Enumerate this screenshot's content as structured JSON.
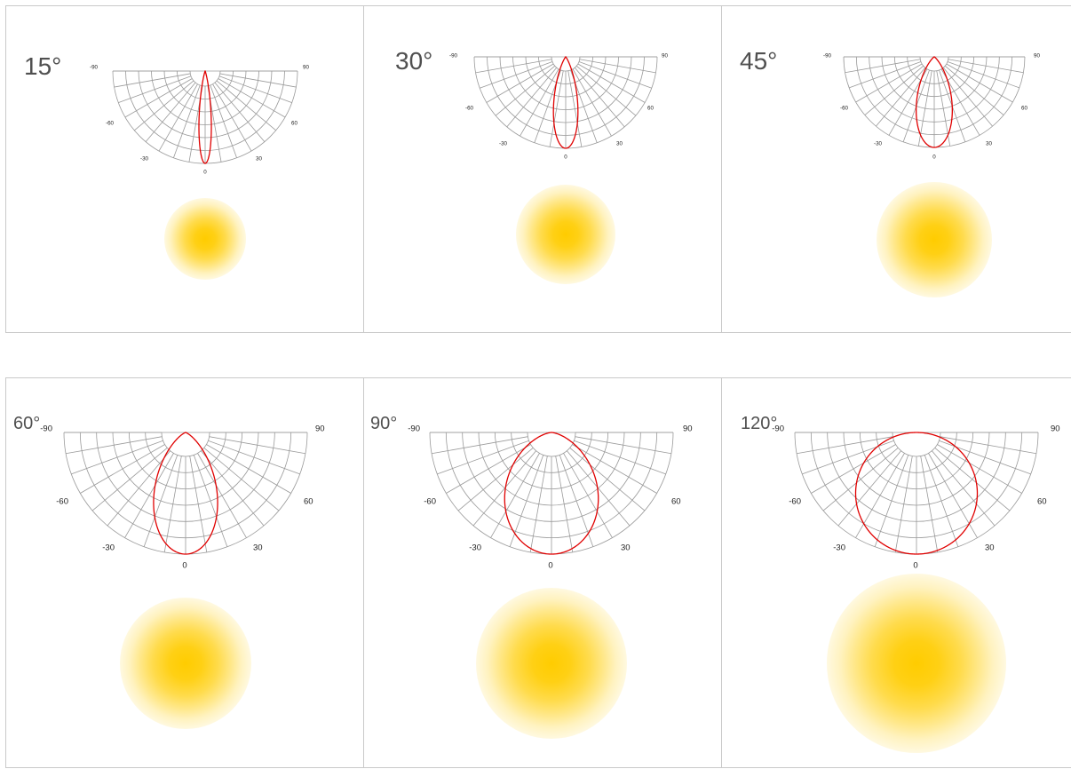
{
  "colors": {
    "grid": "#9a9a9a",
    "curve": "#e00000",
    "spot": "#ffcc00",
    "panel_border": "#c9c9c9",
    "title": "#505050"
  },
  "panels": [
    {
      "id": "15",
      "title": "15°",
      "beam_angle_deg": 15,
      "polar_labels": [
        "-90",
        "90",
        "-60",
        "60",
        "-30",
        "30",
        "0"
      ]
    },
    {
      "id": "30",
      "title": "30°",
      "beam_angle_deg": 30,
      "polar_labels": [
        "-90",
        "90",
        "-60",
        "60",
        "-30",
        "30",
        "0"
      ]
    },
    {
      "id": "45",
      "title": "45°",
      "beam_angle_deg": 45,
      "polar_labels": [
        "-90",
        "90",
        "-60",
        "60",
        "-30",
        "30",
        "0"
      ]
    },
    {
      "id": "60",
      "title": "60°",
      "beam_angle_deg": 60,
      "polar_labels": [
        "-90",
        "90",
        "-60",
        "60",
        "-30",
        "30",
        "0"
      ]
    },
    {
      "id": "90",
      "title": "90°",
      "beam_angle_deg": 90,
      "polar_labels": [
        "-90",
        "90",
        "-60",
        "60",
        "-30",
        "30",
        "0"
      ]
    },
    {
      "id": "120",
      "title": "120°",
      "beam_angle_deg": 120,
      "polar_labels": [
        "-90",
        "90",
        "-60",
        "60",
        "-30",
        "30",
        "0"
      ]
    }
  ]
}
